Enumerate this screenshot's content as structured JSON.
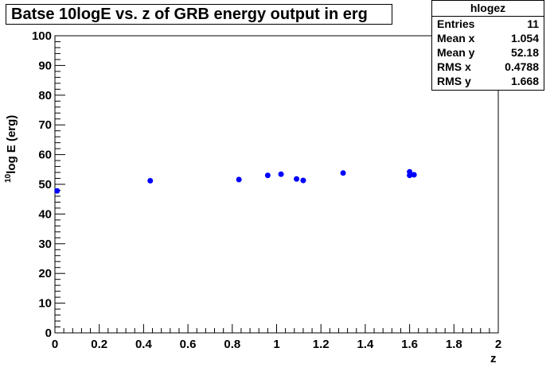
{
  "title": "Batse 10logE vs. z of GRB energy output in erg",
  "stats": {
    "name": "hlogez",
    "rows": [
      {
        "key": "Entries",
        "value": "11"
      },
      {
        "key": "Mean x",
        "value": "1.054"
      },
      {
        "key": "Mean y",
        "value": "52.18"
      },
      {
        "key": "RMS x",
        "value": "0.4788"
      },
      {
        "key": "RMS y",
        "value": "1.668"
      }
    ]
  },
  "chart_data": {
    "type": "scatter",
    "title": "Batse 10logE vs. z of GRB energy output in erg",
    "xlabel": "z",
    "ylabel_sup": "10",
    "ylabel_main": "log E (erg)",
    "xlim": [
      0,
      2
    ],
    "ylim": [
      0,
      100
    ],
    "x_ticks": [
      "0",
      "0.2",
      "0.4",
      "0.6",
      "0.8",
      "1",
      "1.2",
      "1.4",
      "1.6",
      "1.8",
      "2"
    ],
    "y_ticks": [
      "0",
      "10",
      "20",
      "30",
      "40",
      "50",
      "60",
      "70",
      "80",
      "90",
      "100"
    ],
    "grid": false,
    "marker_color": "#0000ff",
    "points": [
      {
        "x": 0.01,
        "y": 47.8
      },
      {
        "x": 0.43,
        "y": 51.2
      },
      {
        "x": 0.83,
        "y": 51.6
      },
      {
        "x": 0.96,
        "y": 53.0
      },
      {
        "x": 1.02,
        "y": 53.4
      },
      {
        "x": 1.09,
        "y": 51.8
      },
      {
        "x": 1.12,
        "y": 51.3
      },
      {
        "x": 1.3,
        "y": 53.8
      },
      {
        "x": 1.6,
        "y": 54.2
      },
      {
        "x": 1.6,
        "y": 53.0
      },
      {
        "x": 1.62,
        "y": 53.2
      }
    ]
  }
}
